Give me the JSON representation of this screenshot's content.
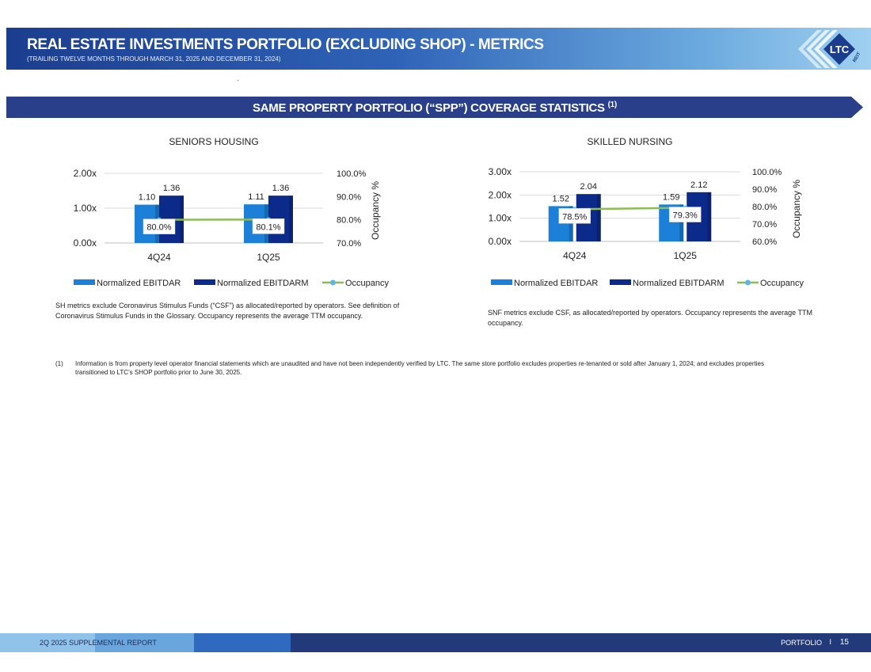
{
  "header": {
    "title": "REAL ESTATE INVESTMENTS PORTFOLIO (EXCLUDING SHOP) - METRICS",
    "subtitle": "(TRAILING TWELVE MONTHS THROUGH MARCH 31, 2025 AND DECEMBER 31, 2024)",
    "logo_text": "LTC",
    "logo_sub": "REIT"
  },
  "banner": {
    "text": "SAME PROPERTY PORTFOLIO (“SPP”) COVERAGE STATISTICS",
    "sup": "(1)"
  },
  "colors": {
    "ebitdar": "#1c7fd8",
    "ebitdarm": "#0c2a8a",
    "occupancy": "#8dbb55",
    "occupancy_marker": "#5fb5e0",
    "header_dark": "#1b3d8e",
    "banner": "#2a3f8a"
  },
  "chart_data": [
    {
      "type": "bar",
      "title": "SENIORS HOUSING",
      "categories": [
        "4Q24",
        "1Q25"
      ],
      "series": [
        {
          "name": "Normalized EBITDAR",
          "values": [
            1.1,
            1.11
          ],
          "labels": [
            "1.10",
            "1.11"
          ]
        },
        {
          "name": "Normalized EBITDARM",
          "values": [
            1.36,
            1.36
          ],
          "labels": [
            "1.36",
            "1.36"
          ]
        },
        {
          "name": "Occupancy",
          "type": "line",
          "axis": "right",
          "values": [
            80.0,
            80.1
          ],
          "labels": [
            "80.0%",
            "80.1%"
          ]
        }
      ],
      "ylim": [
        0,
        2
      ],
      "yticks": [
        "0.00x",
        "1.00x",
        "2.00x"
      ],
      "y2lim": [
        70,
        100
      ],
      "y2ticks": [
        "70.0%",
        "80.0%",
        "90.0%",
        "100.0%"
      ],
      "y2label": "Occupancy %",
      "legend": "bottom"
    },
    {
      "type": "bar",
      "title": "SKILLED NURSING",
      "categories": [
        "4Q24",
        "1Q25"
      ],
      "series": [
        {
          "name": "Normalized EBITDAR",
          "values": [
            1.52,
            1.59
          ],
          "labels": [
            "1.52",
            "1.59"
          ]
        },
        {
          "name": "Normalized EBITDARM",
          "values": [
            2.04,
            2.12
          ],
          "labels": [
            "2.04",
            "2.12"
          ]
        },
        {
          "name": "Occupancy",
          "type": "line",
          "axis": "right",
          "values": [
            78.5,
            79.3
          ],
          "labels": [
            "78.5%",
            "79.3%"
          ]
        }
      ],
      "ylim": [
        0,
        3
      ],
      "yticks": [
        "0.00x",
        "1.00x",
        "2.00x",
        "3.00x"
      ],
      "y2lim": [
        60,
        100
      ],
      "y2ticks": [
        "60.0%",
        "70.0%",
        "80.0%",
        "90.0%",
        "100.0%"
      ],
      "y2label": "Occupancy %",
      "legend": "bottom"
    }
  ],
  "notes": {
    "sh": "SH metrics exclude Coronavirus Stimulus Funds (“CSF”) as allocated/reported by operators. See definition of Coronavirus Stimulus Funds in the Glossary. Occupancy represents the average TTM occupancy.",
    "snf": "SNF metrics exclude CSF, as allocated/reported by operators. Occupancy represents the average TTM occupancy."
  },
  "footnote": {
    "num": "(1)",
    "text": "Information is from property level operator financial statements which are unaudited and have not been independently verified by LTC.  The same store portfolio excludes properties re-tenanted or sold after January 1, 2024; and excludes properties transitioned to LTC’s SHOP portfolio prior to June 30, 2025."
  },
  "footer": {
    "left": "2Q 2025 SUPPLEMENTAL REPORT",
    "right": "PORTFOLIO",
    "sep": "I",
    "page": "15"
  }
}
